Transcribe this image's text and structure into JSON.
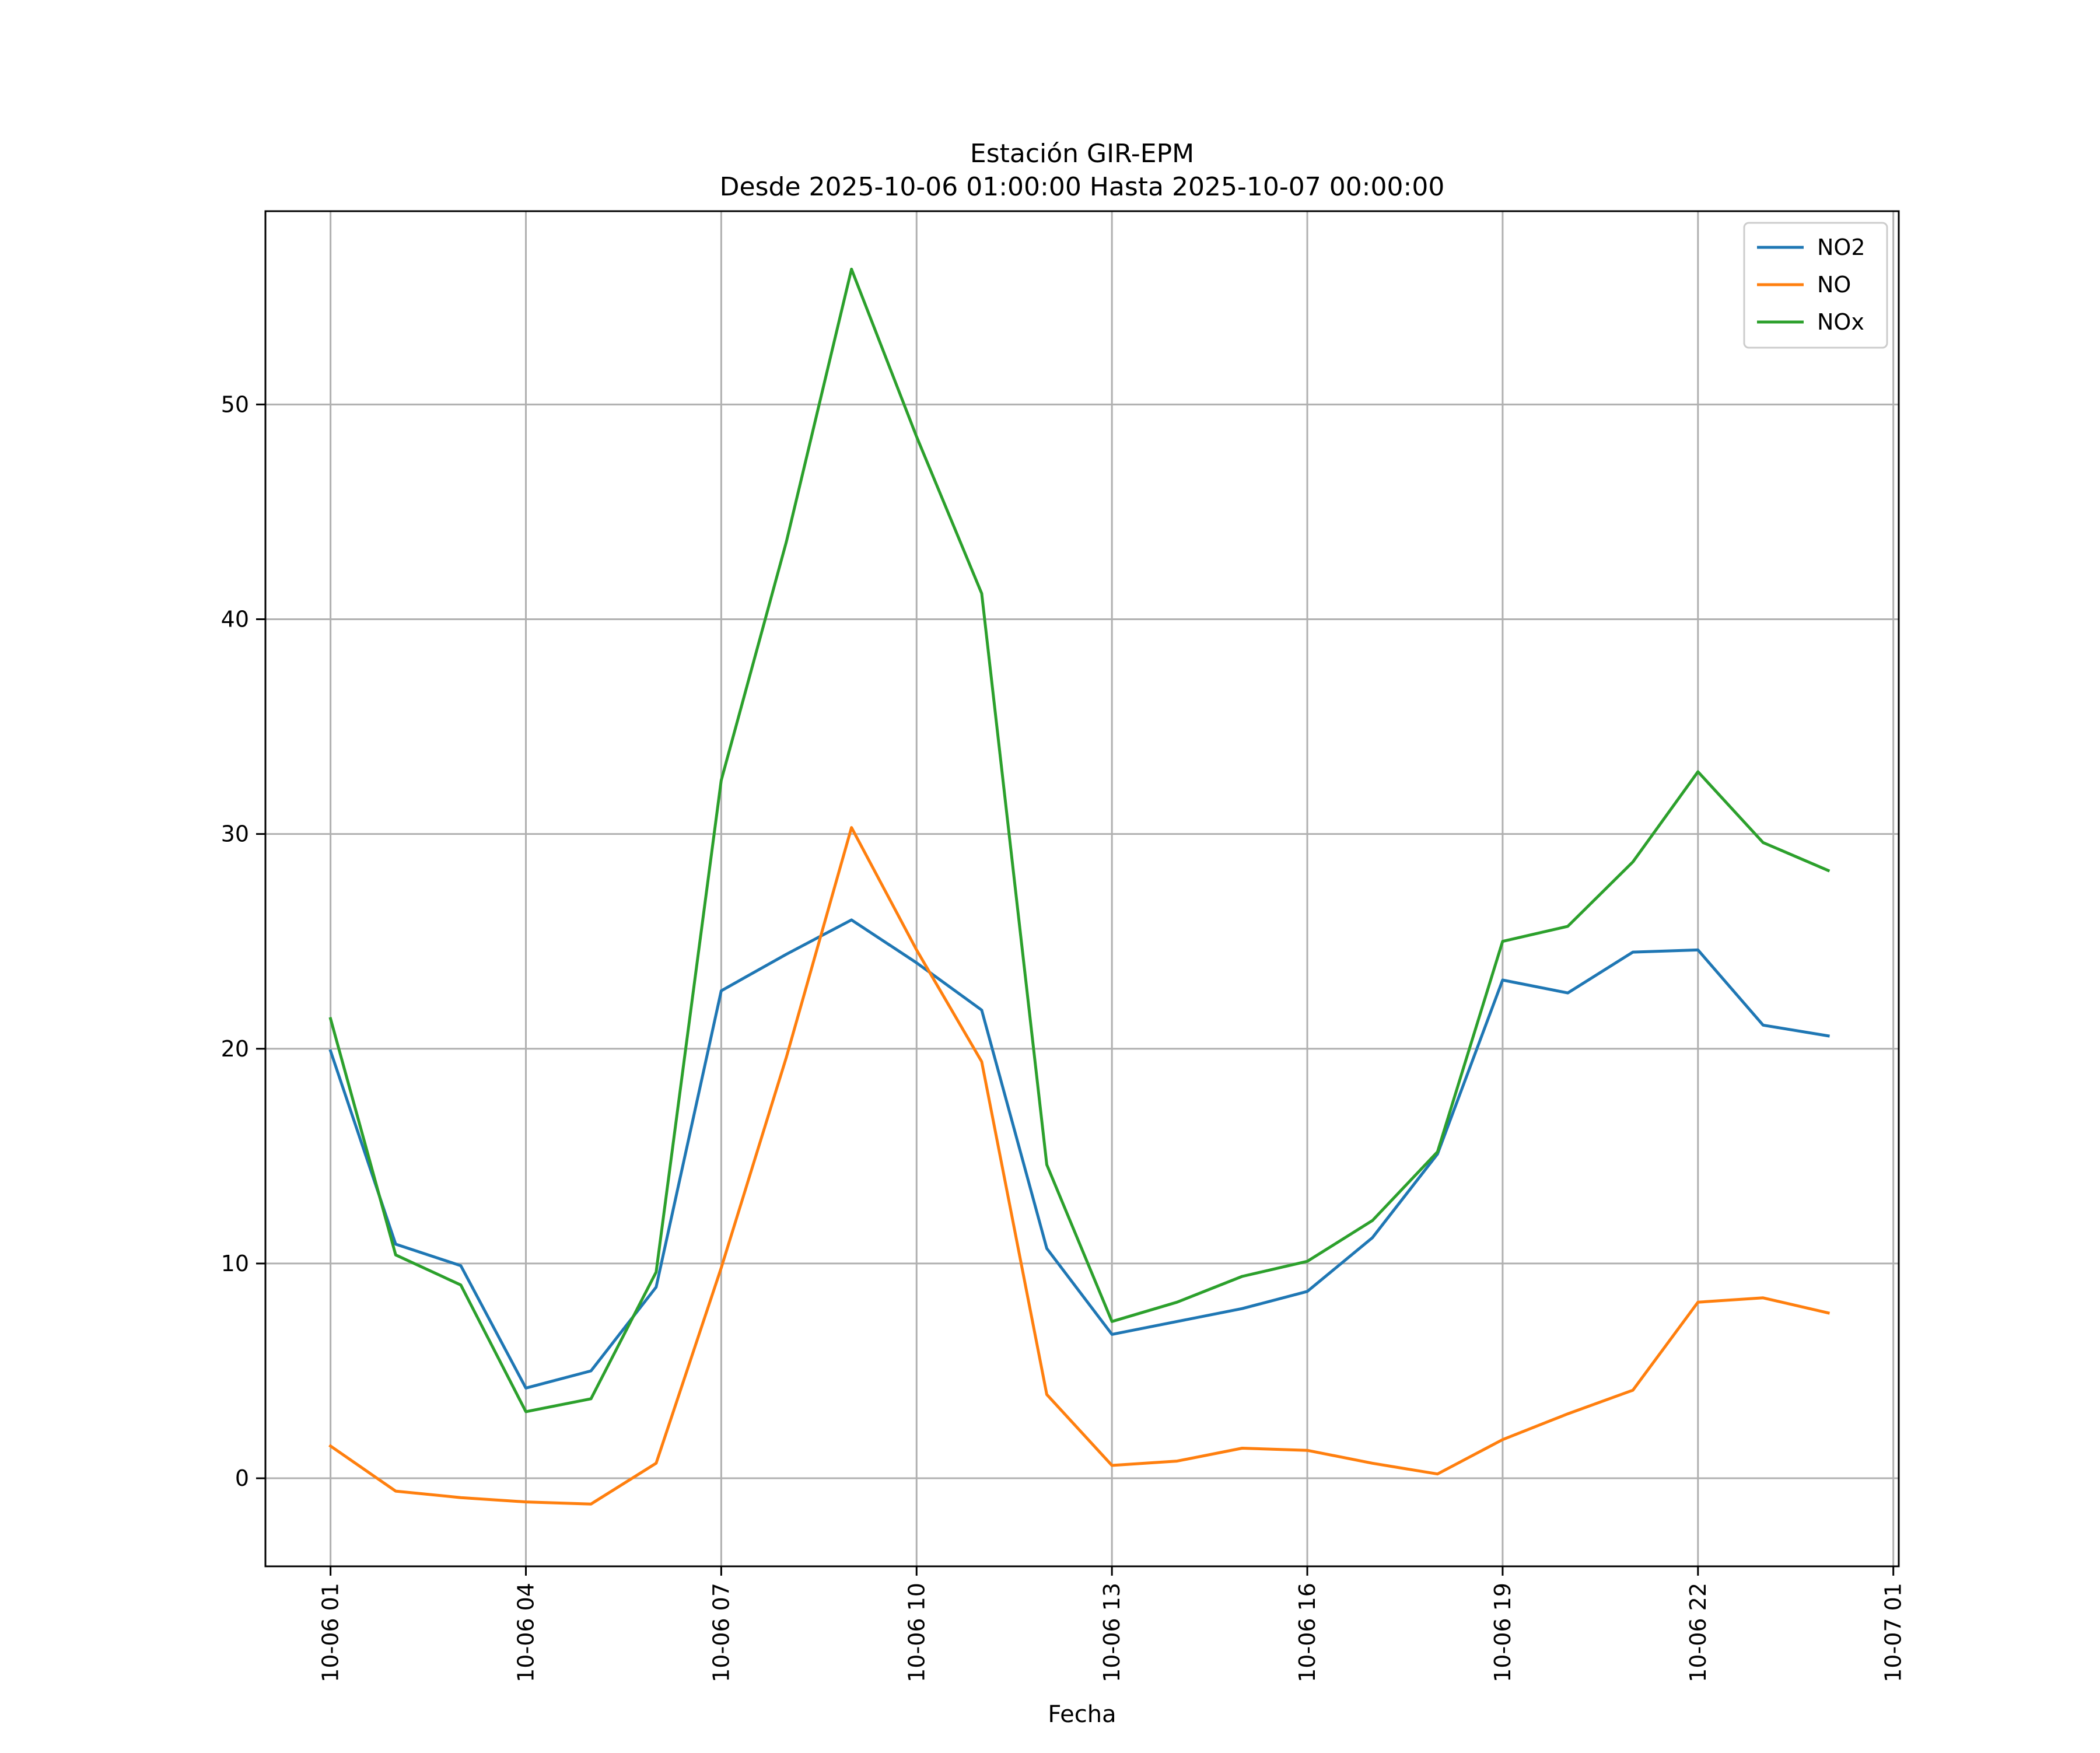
{
  "chart_data": {
    "type": "line",
    "title": "Estación GIR-EPM",
    "subtitle": "Desde 2025-10-06 01:00:00 Hasta 2025-10-07 00:00:00",
    "xlabel": "Fecha",
    "ylabel": "",
    "x": [
      "2025-10-06 01:00",
      "2025-10-06 02:00",
      "2025-10-06 03:00",
      "2025-10-06 04:00",
      "2025-10-06 05:00",
      "2025-10-06 06:00",
      "2025-10-06 07:00",
      "2025-10-06 08:00",
      "2025-10-06 09:00",
      "2025-10-06 10:00",
      "2025-10-06 11:00",
      "2025-10-06 12:00",
      "2025-10-06 13:00",
      "2025-10-06 14:00",
      "2025-10-06 15:00",
      "2025-10-06 16:00",
      "2025-10-06 17:00",
      "2025-10-06 18:00",
      "2025-10-06 19:00",
      "2025-10-06 20:00",
      "2025-10-06 21:00",
      "2025-10-06 22:00",
      "2025-10-06 23:00",
      "2025-10-07 00:00"
    ],
    "xlim": [
      "2025-10-06 00:00",
      "2025-10-07 01:05"
    ],
    "ylim": [
      -4.1,
      59.0
    ],
    "xticks": [
      {
        "value": "2025-10-06 01:00",
        "label": "10-06 01"
      },
      {
        "value": "2025-10-06 04:00",
        "label": "10-06 04"
      },
      {
        "value": "2025-10-06 07:00",
        "label": "10-06 07"
      },
      {
        "value": "2025-10-06 10:00",
        "label": "10-06 10"
      },
      {
        "value": "2025-10-06 13:00",
        "label": "10-06 13"
      },
      {
        "value": "2025-10-06 16:00",
        "label": "10-06 16"
      },
      {
        "value": "2025-10-06 19:00",
        "label": "10-06 19"
      },
      {
        "value": "2025-10-06 22:00",
        "label": "10-06 22"
      },
      {
        "value": "2025-10-07 01:00",
        "label": "10-07 01"
      }
    ],
    "yticks": [
      0,
      10,
      20,
      30,
      40,
      50
    ],
    "grid": true,
    "legend_position": "top-right",
    "series": [
      {
        "name": "NO2",
        "color": "#1f77b4",
        "values": [
          19.9,
          10.9,
          9.9,
          4.2,
          5.0,
          8.9,
          22.7,
          24.4,
          26.0,
          24.0,
          21.8,
          10.7,
          6.7,
          7.3,
          7.9,
          8.7,
          11.2,
          15.1,
          23.2,
          22.6,
          24.5,
          24.6,
          21.1,
          20.6
        ]
      },
      {
        "name": "NO",
        "color": "#ff7f0e",
        "values": [
          1.5,
          -0.6,
          -0.9,
          -1.1,
          -1.2,
          0.7,
          9.8,
          19.6,
          30.3,
          24.6,
          19.4,
          3.9,
          0.6,
          0.8,
          1.4,
          1.3,
          0.7,
          0.2,
          1.8,
          3.0,
          4.1,
          8.2,
          8.4,
          7.7
        ]
      },
      {
        "name": "NOx",
        "color": "#2ca02c",
        "values": [
          21.4,
          10.4,
          9.0,
          3.1,
          3.7,
          9.6,
          32.5,
          43.6,
          56.3,
          48.5,
          41.2,
          14.6,
          7.3,
          8.2,
          9.4,
          10.1,
          12.0,
          15.2,
          25.0,
          25.7,
          28.7,
          32.9,
          29.6,
          28.3
        ]
      }
    ]
  }
}
